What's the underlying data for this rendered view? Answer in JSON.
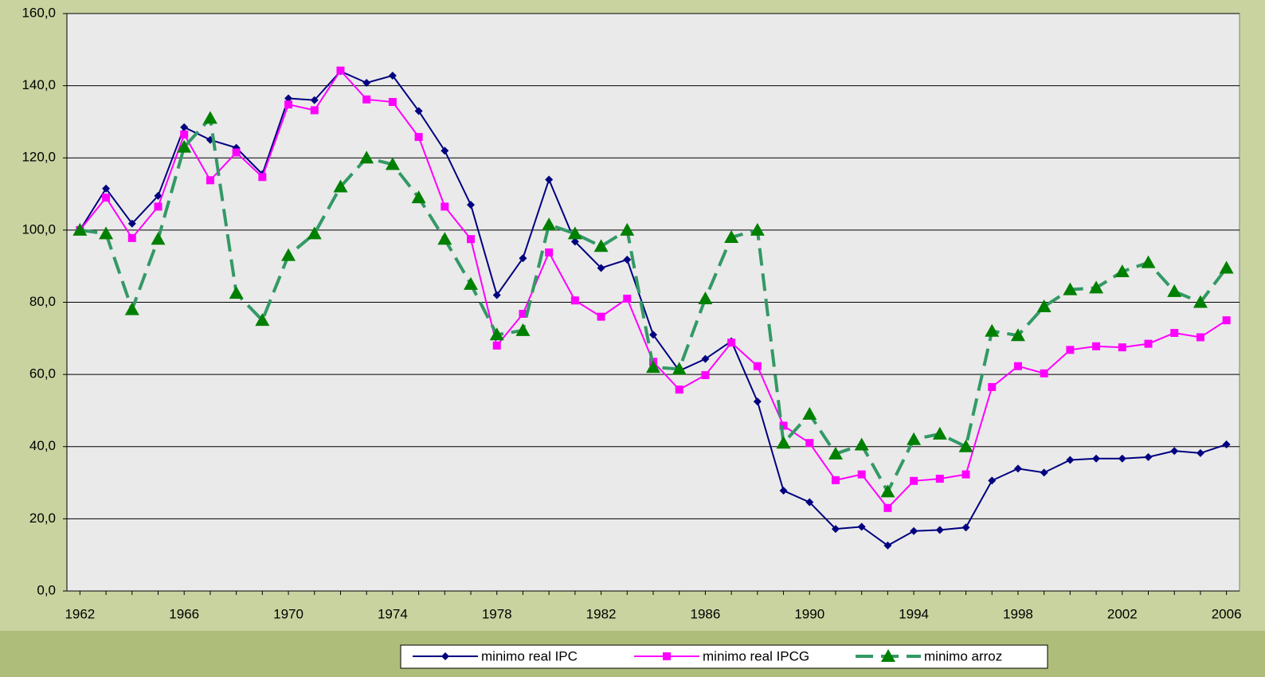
{
  "chart_data": {
    "type": "line",
    "x": [
      1962,
      1963,
      1964,
      1965,
      1966,
      1967,
      1968,
      1969,
      1970,
      1971,
      1972,
      1973,
      1974,
      1975,
      1976,
      1977,
      1978,
      1979,
      1980,
      1981,
      1982,
      1983,
      1984,
      1985,
      1986,
      1987,
      1988,
      1989,
      1990,
      1991,
      1992,
      1993,
      1994,
      1995,
      1996,
      1997,
      1998,
      1999,
      2000,
      2001,
      2002,
      2003,
      2004,
      2005,
      2006
    ],
    "xlim": [
      1961.5,
      2006.5
    ],
    "xticks": [
      1962,
      1966,
      1970,
      1974,
      1978,
      1982,
      1986,
      1990,
      1994,
      1998,
      2002,
      2006
    ],
    "ylim": [
      0,
      160
    ],
    "yticks": [
      {
        "value": 0,
        "label": "0,0"
      },
      {
        "value": 20,
        "label": "20,0"
      },
      {
        "value": 40,
        "label": "40,0"
      },
      {
        "value": 60,
        "label": "60,0"
      },
      {
        "value": 80,
        "label": "80,0"
      },
      {
        "value": 100,
        "label": "100,0"
      },
      {
        "value": 120,
        "label": "120,0"
      },
      {
        "value": 140,
        "label": "140,0"
      },
      {
        "value": 160,
        "label": "160,0"
      }
    ],
    "grid": true,
    "legend": "bottom",
    "series": [
      {
        "name": "minimo real IPC",
        "color": "#000080",
        "marker": "diamond",
        "line_style": "solid",
        "values": [
          100,
          111.5,
          101.8,
          109.5,
          128.5,
          125,
          122.8,
          115.5,
          136.5,
          136,
          144,
          140.8,
          142.8,
          133,
          122,
          107,
          82,
          92.2,
          114,
          96.8,
          89.5,
          91.8,
          71,
          61,
          64.3,
          69.2,
          52.5,
          27.8,
          24.6,
          17.2,
          17.8,
          12.6,
          16.6,
          16.9,
          17.6,
          30.6,
          33.9,
          32.8,
          36.3,
          36.7,
          36.7,
          37.1,
          38.8,
          38.2,
          40.6
        ]
      },
      {
        "name": "minimo real IPCG",
        "color": "#ff00ff",
        "marker": "square",
        "line_style": "solid",
        "values": [
          100,
          109,
          97.8,
          106.5,
          126.5,
          113.8,
          121.5,
          114.7,
          134.8,
          133.2,
          144.2,
          136.2,
          135.5,
          125.8,
          106.5,
          97.5,
          68,
          76.8,
          93.8,
          80.5,
          76,
          81,
          63.5,
          55.8,
          59.8,
          68.8,
          62.3,
          45.8,
          41,
          30.7,
          32.3,
          23,
          30.5,
          31.1,
          32.3,
          56.5,
          62.3,
          60.3,
          66.8,
          67.8,
          67.5,
          68.5,
          71.5,
          70.3,
          75
        ]
      },
      {
        "name": "minimo arroz",
        "color": "#339966",
        "marker": "triangle",
        "line_style": "dashed",
        "values": [
          100,
          99,
          78,
          97.5,
          123,
          131,
          82.5,
          75,
          93,
          99,
          112,
          120,
          118.2,
          109,
          97.5,
          85,
          71,
          72.2,
          101.5,
          99,
          95.5,
          100,
          62,
          61.5,
          81,
          98,
          100,
          41,
          49,
          38,
          40.5,
          27.5,
          42,
          43.5,
          40,
          72,
          70.8,
          78.8,
          83.5,
          84,
          88.5,
          91,
          83,
          80,
          89.5
        ]
      }
    ]
  }
}
